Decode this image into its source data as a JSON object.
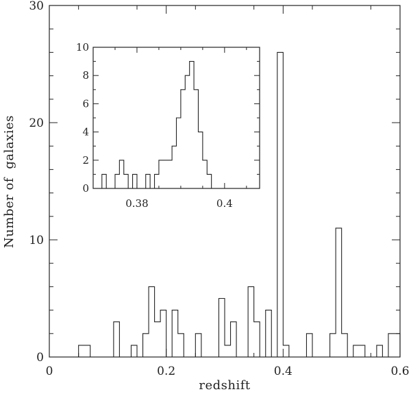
{
  "chart_data": [
    {
      "name": "main",
      "type": "histogram",
      "xlabel": "redshift",
      "ylabel": "Number of  galaxies",
      "xlim": [
        0,
        0.6
      ],
      "ylim": [
        0,
        30
      ],
      "xticks_major": [
        0,
        0.2,
        0.4,
        0.6
      ],
      "xtick_labels": [
        "0",
        "0.2",
        "0.4",
        "0.6"
      ],
      "yticks_major": [
        0,
        10,
        20,
        30
      ],
      "ytick_labels": [
        "0",
        "10",
        "20",
        "30"
      ],
      "bin_width": 0.01,
      "bins": [
        {
          "x": 0.05,
          "count": 1
        },
        {
          "x": 0.06,
          "count": 1
        },
        {
          "x": 0.11,
          "count": 3
        },
        {
          "x": 0.14,
          "count": 1
        },
        {
          "x": 0.16,
          "count": 2
        },
        {
          "x": 0.17,
          "count": 6
        },
        {
          "x": 0.18,
          "count": 3
        },
        {
          "x": 0.19,
          "count": 4
        },
        {
          "x": 0.21,
          "count": 4
        },
        {
          "x": 0.22,
          "count": 2
        },
        {
          "x": 0.25,
          "count": 2
        },
        {
          "x": 0.29,
          "count": 5
        },
        {
          "x": 0.3,
          "count": 1
        },
        {
          "x": 0.31,
          "count": 3
        },
        {
          "x": 0.34,
          "count": 6
        },
        {
          "x": 0.35,
          "count": 3
        },
        {
          "x": 0.37,
          "count": 4
        },
        {
          "x": 0.39,
          "count": 26
        },
        {
          "x": 0.4,
          "count": 1
        },
        {
          "x": 0.44,
          "count": 2
        },
        {
          "x": 0.48,
          "count": 2
        },
        {
          "x": 0.49,
          "count": 11
        },
        {
          "x": 0.5,
          "count": 2
        },
        {
          "x": 0.52,
          "count": 1
        },
        {
          "x": 0.53,
          "count": 1
        },
        {
          "x": 0.56,
          "count": 1
        },
        {
          "x": 0.58,
          "count": 2
        },
        {
          "x": 0.59,
          "count": 2
        }
      ]
    },
    {
      "name": "inset",
      "type": "histogram",
      "xlim": [
        0.37,
        0.408
      ],
      "ylim": [
        0,
        10
      ],
      "xticks_major": [
        0.38,
        0.4
      ],
      "xtick_labels": [
        "0.38",
        "0.4"
      ],
      "yticks_major": [
        0,
        2,
        4,
        6,
        8,
        10
      ],
      "ytick_labels": [
        "0",
        "2",
        "4",
        "6",
        "8",
        "10"
      ],
      "bin_width": 0.001,
      "bins": [
        {
          "x": 0.372,
          "count": 1
        },
        {
          "x": 0.375,
          "count": 1
        },
        {
          "x": 0.376,
          "count": 2
        },
        {
          "x": 0.377,
          "count": 1
        },
        {
          "x": 0.379,
          "count": 1
        },
        {
          "x": 0.382,
          "count": 1
        },
        {
          "x": 0.384,
          "count": 1
        },
        {
          "x": 0.385,
          "count": 2
        },
        {
          "x": 0.386,
          "count": 2
        },
        {
          "x": 0.387,
          "count": 2
        },
        {
          "x": 0.388,
          "count": 3
        },
        {
          "x": 0.389,
          "count": 5
        },
        {
          "x": 0.39,
          "count": 7
        },
        {
          "x": 0.391,
          "count": 8
        },
        {
          "x": 0.392,
          "count": 9
        },
        {
          "x": 0.393,
          "count": 7
        },
        {
          "x": 0.394,
          "count": 4
        },
        {
          "x": 0.395,
          "count": 2
        },
        {
          "x": 0.396,
          "count": 1
        }
      ]
    }
  ]
}
